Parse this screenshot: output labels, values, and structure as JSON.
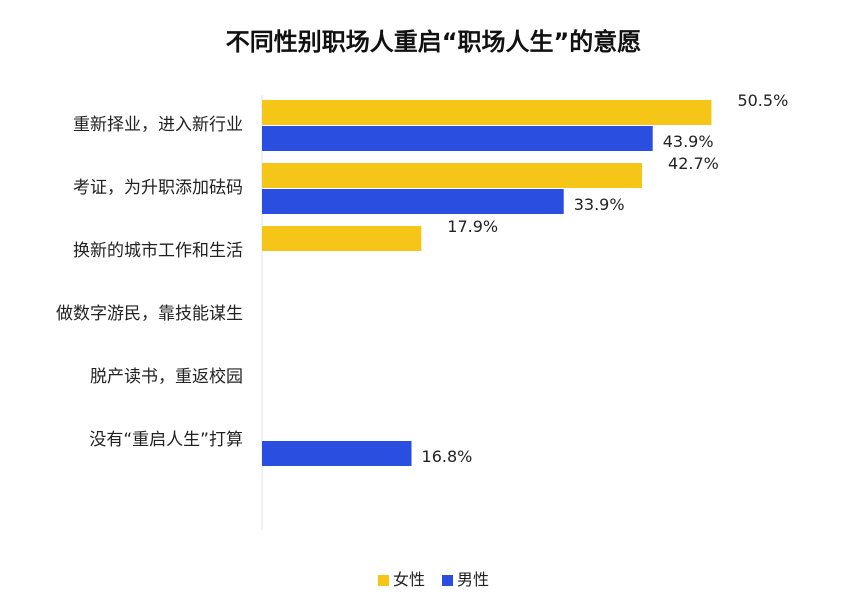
{
  "chart_data": {
    "type": "bar",
    "orientation": "horizontal",
    "title": "不同性别职场人重启“职场人生”的意愿",
    "categories": [
      "重新择业，进入新行业",
      "考证，为升职添加砝码",
      "换新的城市工作和生活",
      "做数字游民，靠技能谋生",
      "脱产读书，重返校园",
      "没有“重启人生”打算"
    ],
    "series": [
      {
        "name": "女性",
        "color": "#f5c518",
        "values": [
          50.5,
          42.7,
          17.9,
          null,
          null,
          null
        ]
      },
      {
        "name": "男性",
        "color": "#2a4fe0",
        "values": [
          43.9,
          33.9,
          null,
          null,
          null,
          16.8
        ]
      }
    ],
    "value_labels": [
      [
        "50.5%",
        "42.7%",
        "17.9%",
        "",
        "",
        ""
      ],
      [
        "43.9%",
        "33.9%",
        "",
        "",
        "",
        "16.8%"
      ]
    ],
    "xlim": [
      0,
      57
    ],
    "grid": false,
    "legend_position": "bottom"
  }
}
